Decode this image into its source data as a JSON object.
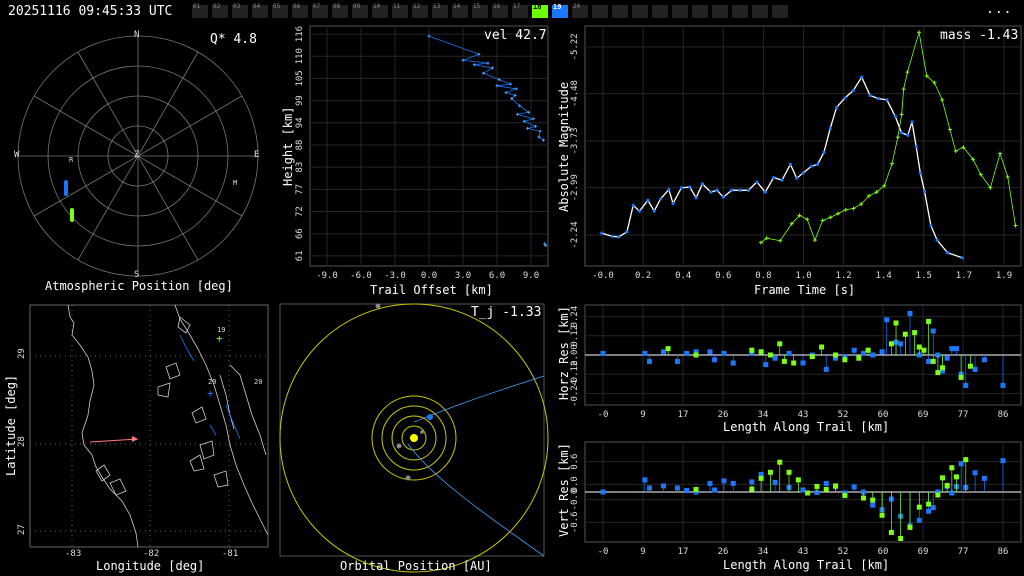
{
  "header": {
    "timestamp": "20251116 09:45:33 UTC",
    "menu_label": "...",
    "tabs": [
      "01",
      "02",
      "03",
      "04",
      "05",
      "06",
      "07",
      "08",
      "09",
      "10",
      "11",
      "12",
      "13",
      "14",
      "15",
      "16",
      "17",
      "18",
      "19",
      "20"
    ],
    "active_green": "18",
    "active_blue": "19"
  },
  "colors": {
    "blue": "#1a78ff",
    "green": "#7dff1a",
    "yellow": "#c8c800",
    "bg": "#000000",
    "white": "#ffffff"
  },
  "sky": {
    "title": "Atmospheric Position [deg]",
    "qstar": "Q*  4.8",
    "dirs": {
      "n": "N",
      "s": "S",
      "e": "E",
      "w": "W",
      "z": "Z"
    },
    "marker_r": "R",
    "marker_m": "M"
  },
  "map": {
    "xlabel": "Longitude [deg]",
    "ylabel": "Latitude [deg]",
    "xticks": [
      "-83",
      "-82",
      "-81"
    ],
    "yticks": [
      "29",
      "28",
      "27"
    ],
    "station_labels": [
      "19",
      "20",
      "20"
    ]
  },
  "orbit": {
    "xlabel": "Orbital Position [AU]",
    "tj": "T_j -1.33"
  },
  "chart_data": [
    {
      "type": "scatter",
      "name": "trail",
      "xlabel": "Trail Offset [km]",
      "ylabel": "Height [km]",
      "corner": "vel 42.7",
      "xticks": [
        "-9.0",
        "-6.0",
        "-3.0",
        "0.0",
        "3.0",
        "6.0",
        "9.0"
      ],
      "yticks": [
        "116",
        "110",
        "105",
        "99",
        "94",
        "88",
        "83",
        "77",
        "72",
        "66",
        "61"
      ],
      "xlim": [
        -10.5,
        10.5
      ],
      "ylim": [
        58.5,
        118
      ],
      "points": [
        [
          0.0,
          115.5
        ],
        [
          4.4,
          111.0
        ],
        [
          3.0,
          109.5
        ],
        [
          5.2,
          108.8
        ],
        [
          4.0,
          108.4
        ],
        [
          5.6,
          107.6
        ],
        [
          4.8,
          106.3
        ],
        [
          6.2,
          104.7
        ],
        [
          7.2,
          103.6
        ],
        [
          6.0,
          103.2
        ],
        [
          7.7,
          102.4
        ],
        [
          6.8,
          101.5
        ],
        [
          7.6,
          100.8
        ],
        [
          7.3,
          100.0
        ],
        [
          8.0,
          98.2
        ],
        [
          8.8,
          96.6
        ],
        [
          7.8,
          96.1
        ],
        [
          9.2,
          95.0
        ],
        [
          8.4,
          94.4
        ],
        [
          9.4,
          93.1
        ],
        [
          8.7,
          92.6
        ],
        [
          9.8,
          91.9
        ],
        [
          9.7,
          90.5
        ],
        [
          10.1,
          89.7
        ],
        [
          10.2,
          64.0
        ],
        [
          10.3,
          63.6
        ]
      ]
    },
    {
      "type": "line",
      "name": "light-curve",
      "xlabel": "Frame Time [s]",
      "ylabel": "Absolute Magnitude",
      "corner": "mass -1.43",
      "xticks": [
        "-0.0",
        "0.2",
        "0.4",
        "0.6",
        "0.8",
        "1.0",
        "1.2",
        "1.4",
        "1.5",
        "1.7",
        "1.9"
      ],
      "yticks": [
        "-5.22",
        "-4.48",
        "-3.73",
        "-2.99",
        "-2.24"
      ],
      "xlim": [
        -0.08,
        2.0
      ],
      "ylim": [
        -1.75,
        -5.55
      ],
      "series": [
        {
          "values": [
            [
              0.0,
              -2.27
            ],
            [
              0.05,
              -2.22
            ],
            [
              0.08,
              -2.21
            ],
            [
              0.12,
              -2.29
            ],
            [
              0.15,
              -2.71
            ],
            [
              0.18,
              -2.62
            ],
            [
              0.22,
              -2.79
            ],
            [
              0.25,
              -2.62
            ],
            [
              0.28,
              -2.81
            ],
            [
              0.32,
              -2.96
            ],
            [
              0.34,
              -2.74
            ],
            [
              0.38,
              -2.99
            ],
            [
              0.42,
              -3.0
            ],
            [
              0.45,
              -2.83
            ],
            [
              0.48,
              -3.05
            ],
            [
              0.52,
              -2.92
            ],
            [
              0.55,
              -2.95
            ],
            [
              0.58,
              -2.84
            ],
            [
              0.62,
              -2.95
            ],
            [
              0.66,
              -2.95
            ],
            [
              0.7,
              -2.95
            ],
            [
              0.74,
              -3.08
            ],
            [
              0.78,
              -2.92
            ],
            [
              0.82,
              -3.15
            ],
            [
              0.86,
              -3.11
            ],
            [
              0.9,
              -3.36
            ],
            [
              0.93,
              -3.14
            ],
            [
              0.96,
              -3.22
            ],
            [
              1.0,
              -3.33
            ],
            [
              1.03,
              -3.36
            ],
            [
              1.06,
              -3.55
            ],
            [
              1.09,
              -3.93
            ],
            [
              1.12,
              -4.26
            ],
            [
              1.16,
              -4.41
            ],
            [
              1.2,
              -4.53
            ],
            [
              1.24,
              -4.74
            ],
            [
              1.28,
              -4.45
            ],
            [
              1.32,
              -4.4
            ],
            [
              1.36,
              -4.38
            ],
            [
              1.4,
              -4.12
            ],
            [
              1.43,
              -3.86
            ],
            [
              1.46,
              -3.82
            ],
            [
              1.48,
              -4.03
            ],
            [
              1.5,
              -3.64
            ],
            [
              1.52,
              -3.22
            ],
            [
              1.54,
              -2.93
            ],
            [
              1.57,
              -2.39
            ],
            [
              1.6,
              -2.16
            ],
            [
              1.65,
              -1.96
            ],
            [
              1.72,
              -1.88
            ]
          ]
        },
        {
          "values": [
            [
              0.76,
              -2.12
            ],
            [
              0.79,
              -2.19
            ],
            [
              0.86,
              -2.15
            ],
            [
              0.92,
              -2.42
            ],
            [
              0.96,
              -2.55
            ],
            [
              1.0,
              -2.49
            ],
            [
              1.04,
              -2.16
            ],
            [
              1.08,
              -2.47
            ],
            [
              1.12,
              -2.52
            ],
            [
              1.16,
              -2.58
            ],
            [
              1.2,
              -2.64
            ],
            [
              1.24,
              -2.66
            ],
            [
              1.28,
              -2.73
            ],
            [
              1.32,
              -2.86
            ],
            [
              1.36,
              -2.92
            ],
            [
              1.4,
              -3.02
            ],
            [
              1.44,
              -3.37
            ],
            [
              1.47,
              -3.79
            ],
            [
              1.49,
              -4.15
            ],
            [
              1.5,
              -4.55
            ],
            [
              1.52,
              -4.82
            ],
            [
              1.58,
              -5.45
            ],
            [
              1.62,
              -4.76
            ],
            [
              1.66,
              -4.65
            ],
            [
              1.7,
              -4.38
            ],
            [
              1.74,
              -3.91
            ],
            [
              1.77,
              -3.57
            ],
            [
              1.81,
              -3.63
            ],
            [
              1.86,
              -3.44
            ],
            [
              1.9,
              -3.2
            ],
            [
              1.95,
              -2.99
            ],
            [
              2.0,
              -3.53
            ],
            [
              2.04,
              -3.16
            ],
            [
              2.08,
              -2.39
            ]
          ]
        }
      ]
    },
    {
      "type": "scatter",
      "name": "horz-res",
      "xlabel": "Length Along Trail [km]",
      "ylabel": "Horz Res [km]",
      "xticks": [
        "-0",
        "9",
        "17",
        "26",
        "34",
        "43",
        "52",
        "60",
        "69",
        "77",
        "86"
      ],
      "yticks": [
        "0.24",
        "0.12",
        "0.00",
        "-0.12",
        "-0.24"
      ],
      "xlim": [
        -6,
        90
      ],
      "ylim": [
        -0.3,
        0.3
      ],
      "blue": [
        [
          0,
          0.01
        ],
        [
          9,
          0.01
        ],
        [
          10,
          -0.04
        ],
        [
          13,
          0.02
        ],
        [
          16,
          -0.04
        ],
        [
          18,
          0.01
        ],
        [
          20,
          0.02
        ],
        [
          23,
          0.02
        ],
        [
          24,
          -0.03
        ],
        [
          26,
          0.01
        ],
        [
          28,
          -0.05
        ],
        [
          32,
          0.01
        ],
        [
          35,
          -0.06
        ],
        [
          37,
          -0.02
        ],
        [
          40,
          0.01
        ],
        [
          43,
          -0.05
        ],
        [
          45,
          0.0
        ],
        [
          48,
          -0.09
        ],
        [
          50,
          -0.02
        ],
        [
          52,
          -0.01
        ],
        [
          54,
          0.03
        ],
        [
          56,
          0.01
        ],
        [
          58,
          0.0
        ],
        [
          60,
          0.02
        ],
        [
          61,
          0.22
        ],
        [
          63,
          0.08
        ],
        [
          64,
          0.07
        ],
        [
          66,
          0.26
        ],
        [
          68,
          0.0
        ],
        [
          70,
          -0.04
        ],
        [
          71,
          0.15
        ],
        [
          72,
          0.0
        ],
        [
          73,
          -0.1
        ],
        [
          74,
          -0.02
        ],
        [
          75,
          0.04
        ],
        [
          76,
          0.04
        ],
        [
          77,
          -0.12
        ],
        [
          78,
          -0.19
        ],
        [
          80,
          -0.09
        ],
        [
          82,
          -0.03
        ],
        [
          86,
          -0.19
        ]
      ],
      "green": [
        [
          14,
          0.04
        ],
        [
          20,
          0.0
        ],
        [
          32,
          0.03
        ],
        [
          34,
          0.02
        ],
        [
          36,
          0.0
        ],
        [
          38,
          0.07
        ],
        [
          39,
          -0.04
        ],
        [
          41,
          -0.05
        ],
        [
          45,
          -0.01
        ],
        [
          47,
          0.05
        ],
        [
          50,
          0.0
        ],
        [
          52,
          -0.03
        ],
        [
          55,
          -0.02
        ],
        [
          57,
          0.03
        ],
        [
          62,
          0.07
        ],
        [
          63,
          0.2
        ],
        [
          65,
          0.13
        ],
        [
          67,
          0.14
        ],
        [
          68,
          0.05
        ],
        [
          69,
          0.03
        ],
        [
          70,
          0.21
        ],
        [
          71,
          -0.04
        ],
        [
          72,
          -0.11
        ],
        [
          73,
          -0.08
        ],
        [
          77,
          -0.14
        ],
        [
          79,
          -0.07
        ]
      ]
    },
    {
      "type": "scatter",
      "name": "vert-res",
      "xlabel": "Length Along Trail [km]",
      "ylabel": "Vert Res [km]",
      "xticks": [
        "-0",
        "9",
        "17",
        "26",
        "34",
        "43",
        "52",
        "60",
        "69",
        "77",
        "86"
      ],
      "yticks": [
        "0.6",
        "0.0",
        "-0.0",
        "-0.6"
      ],
      "xlim": [
        -6,
        90
      ],
      "ylim": [
        -0.95,
        0.95
      ],
      "blue": [
        [
          0,
          0.0
        ],
        [
          9,
          0.24
        ],
        [
          10,
          0.08
        ],
        [
          13,
          0.12
        ],
        [
          16,
          0.08
        ],
        [
          18,
          0.03
        ],
        [
          20,
          0.0
        ],
        [
          23,
          0.17
        ],
        [
          24,
          0.04
        ],
        [
          26,
          0.22
        ],
        [
          28,
          0.17
        ],
        [
          32,
          0.2
        ],
        [
          34,
          0.35
        ],
        [
          37,
          0.19
        ],
        [
          40,
          0.09
        ],
        [
          43,
          0.04
        ],
        [
          46,
          -0.01
        ],
        [
          48,
          0.17
        ],
        [
          50,
          0.11
        ],
        [
          52,
          -0.02
        ],
        [
          54,
          0.1
        ],
        [
          56,
          0.0
        ],
        [
          58,
          -0.26
        ],
        [
          60,
          -0.35
        ],
        [
          62,
          -0.14
        ],
        [
          64,
          -0.48
        ],
        [
          66,
          -0.67
        ],
        [
          68,
          -0.56
        ],
        [
          70,
          -0.38
        ],
        [
          71,
          -0.31
        ],
        [
          72,
          0.0
        ],
        [
          74,
          0.11
        ],
        [
          75,
          -0.02
        ],
        [
          76,
          0.11
        ],
        [
          77,
          0.56
        ],
        [
          78,
          0.09
        ],
        [
          80,
          0.38
        ],
        [
          82,
          0.27
        ],
        [
          86,
          0.62
        ]
      ],
      "green": [
        [
          20,
          0.05
        ],
        [
          32,
          0.06
        ],
        [
          34,
          0.27
        ],
        [
          36,
          0.39
        ],
        [
          38,
          0.59
        ],
        [
          40,
          0.39
        ],
        [
          42,
          0.24
        ],
        [
          44,
          -0.02
        ],
        [
          46,
          0.11
        ],
        [
          48,
          0.05
        ],
        [
          50,
          0.12
        ],
        [
          52,
          -0.07
        ],
        [
          56,
          -0.12
        ],
        [
          58,
          -0.16
        ],
        [
          60,
          -0.46
        ],
        [
          62,
          -0.8
        ],
        [
          64,
          -0.92
        ],
        [
          66,
          -0.7
        ],
        [
          68,
          -0.3
        ],
        [
          70,
          -0.24
        ],
        [
          72,
          -0.06
        ],
        [
          73,
          0.28
        ],
        [
          74,
          0.13
        ],
        [
          75,
          0.48
        ],
        [
          76,
          0.3
        ],
        [
          78,
          0.64
        ]
      ]
    }
  ]
}
